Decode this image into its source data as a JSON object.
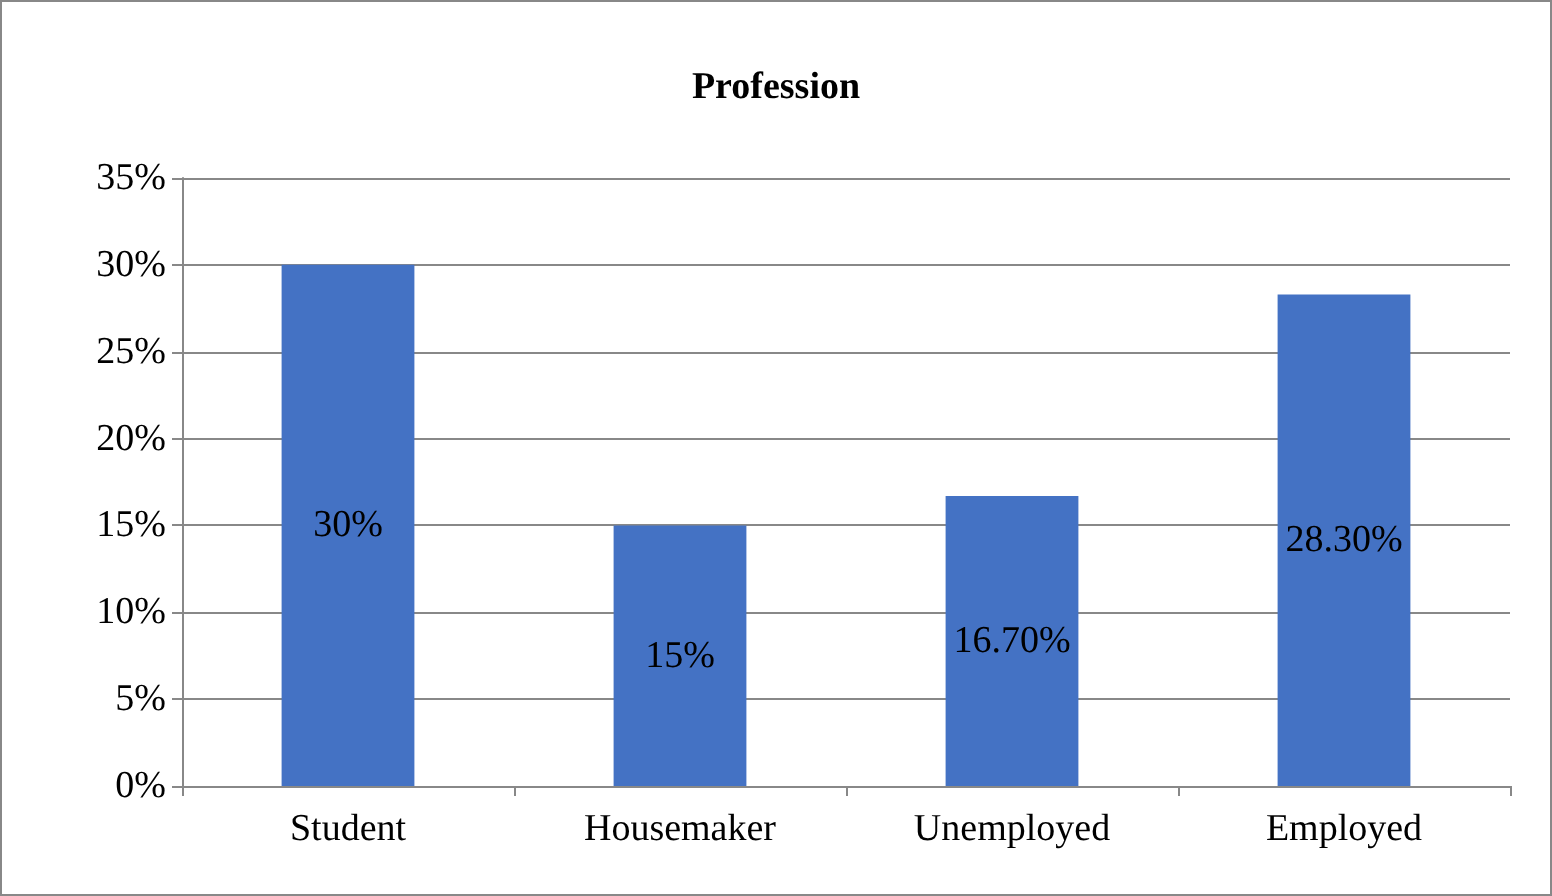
{
  "chart_data": {
    "type": "bar",
    "title": "Profession",
    "categories": [
      "Student",
      "Housemaker",
      "Unemployed",
      "Employed"
    ],
    "values": [
      30,
      15,
      16.7,
      28.3
    ],
    "value_labels": [
      "30%",
      "15%",
      "16.70%",
      "28.30%"
    ],
    "color": "#4472c4",
    "ylim": [
      0,
      35
    ],
    "yticks": [
      {
        "value": 0,
        "label": "0%"
      },
      {
        "value": 5,
        "label": "5%"
      },
      {
        "value": 10,
        "label": "10%"
      },
      {
        "value": 15,
        "label": "15%"
      },
      {
        "value": 20,
        "label": "20%"
      },
      {
        "value": 25,
        "label": "25%"
      },
      {
        "value": 30,
        "label": "30%"
      },
      {
        "value": 35,
        "label": "35%"
      }
    ],
    "grid": "y"
  }
}
